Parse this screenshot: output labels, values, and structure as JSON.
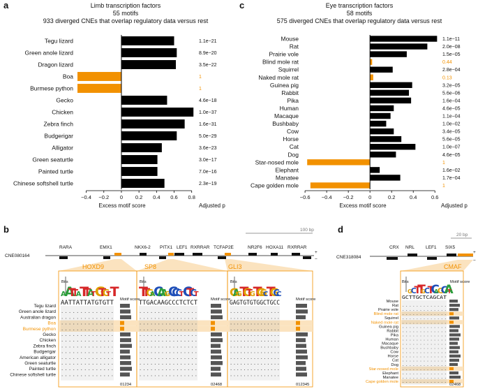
{
  "colors": {
    "accent": "#f29100",
    "bar": "#000000",
    "highlight_bg": "#fbe3bf",
    "gray_bar": "#555555"
  },
  "panel_a": {
    "letter": "a",
    "title_lines": [
      "Limb transcription factors",
      "55 motifs",
      "933 diverged CNEs that overlap regulatory data versus rest"
    ],
    "xlabel": "Excess motif score",
    "pval_label": "Adjusted p",
    "ticks": [
      "−0.4",
      "−0.2",
      "0",
      "0.2",
      "0.4",
      "0.6",
      "0.8"
    ]
  },
  "panel_c": {
    "letter": "c",
    "title_lines": [
      "Eye transcription factors",
      "58 motifs",
      "575 diverged CNEs that overlap regulatory data versus rest"
    ],
    "xlabel": "Excess motif score",
    "pval_label": "Adjusted p",
    "ticks": [
      "−0.6",
      "−0.4",
      "−0.2",
      "0",
      "0.2",
      "0.4",
      "0.6"
    ]
  },
  "chart_data": [
    {
      "type": "bar",
      "orientation": "horizontal",
      "title": "Limb transcription factors",
      "xlabel": "Excess motif score",
      "xlim": [
        -0.5,
        0.85
      ],
      "categories": [
        "Tegu lizard",
        "Green anole lizard",
        "Dragon lizard",
        "Boa",
        "Burmese python",
        "Gecko",
        "Chicken",
        "Zebra finch",
        "Budgerigar",
        "Alligator",
        "Green seaturtle",
        "Painted turtle",
        "Chinese softshell turtle"
      ],
      "values": [
        0.6,
        0.63,
        0.62,
        -0.5,
        -0.5,
        0.52,
        0.82,
        0.72,
        0.63,
        0.46,
        0.41,
        0.41,
        0.49
      ],
      "adjusted_p": [
        "1.1e−21",
        "8.9e−20",
        "3.5e−22",
        "1",
        "1",
        "4.6e−18",
        "1.0e−37",
        "1.6e−31",
        "5.0e−29",
        "3.6e−23",
        "3.0e−17",
        "7.0e−16",
        "2.3e−19"
      ],
      "highlight": [
        false,
        false,
        false,
        true,
        true,
        false,
        false,
        false,
        false,
        false,
        false,
        false,
        false
      ]
    },
    {
      "type": "bar",
      "orientation": "horizontal",
      "title": "Eye transcription factors",
      "xlabel": "Excess motif score",
      "xlim": [
        -0.62,
        0.65
      ],
      "categories": [
        "Mouse",
        "Rat",
        "Prairie vole",
        "Blind mole rat",
        "Squirrel",
        "Naked mole rat",
        "Guinea pig",
        "Rabbit",
        "Pika",
        "Human",
        "Macaque",
        "Bushbaby",
        "Cow",
        "Horse",
        "Cat",
        "Dog",
        "Star-nosed mole",
        "Elephant",
        "Manatee",
        "Cape golden mole"
      ],
      "values": [
        0.62,
        0.53,
        0.34,
        0.02,
        0.21,
        0.03,
        0.39,
        0.36,
        0.38,
        0.22,
        0.19,
        0.15,
        0.22,
        0.29,
        0.42,
        0.24,
        -0.58,
        0.09,
        0.28,
        -0.55
      ],
      "adjusted_p": [
        "1.1e−11",
        "2.0e−08",
        "1.5e−05",
        "0.44",
        "2.8e−04",
        "0.13",
        "3.2e−05",
        "5.6e−06",
        "1.6e−04",
        "4.6e−05",
        "1.1e−04",
        "1.0e−02",
        "3.4e−05",
        "5.6e−05",
        "1.0e−07",
        "4.6e−05",
        "1",
        "1.6e−02",
        "1.7e−04",
        "1"
      ],
      "highlight": [
        false,
        false,
        false,
        true,
        false,
        true,
        false,
        false,
        false,
        false,
        false,
        false,
        false,
        false,
        false,
        false,
        true,
        false,
        false,
        true
      ]
    }
  ],
  "panel_b": {
    "letter": "b",
    "cne": "CNE080164",
    "scale": "100 bp",
    "tfs": [
      "RARA",
      "EMX1",
      "NKX6-2",
      "PITX1",
      "LEF1",
      "RXRRAR",
      "TCFAP2E",
      "NR2F6",
      "HOXA11",
      "RXRRAR"
    ],
    "motifs": [
      "HOXD9",
      "SP8",
      "GLI3"
    ],
    "species": [
      "Tegu lizard",
      "Green anole lizard",
      "Australian dragon",
      "Boa",
      "Burmese python",
      "Gecko",
      "Chicken",
      "Zebra finch",
      "Budgerigar",
      "American alligator",
      "Green seaturtle",
      "Painted turtle",
      "Chinese softshell turtle"
    ],
    "species_highlight": [
      false,
      false,
      false,
      true,
      true,
      false,
      false,
      false,
      false,
      false,
      false,
      false,
      false
    ],
    "seqs": [
      "AATTATTATGTGTT",
      "TTGACAAGCCCTCTCT",
      "GAGTGTGTGGCTGCC"
    ],
    "motif_score_label": "Motif score",
    "axis_labels": [
      "01234",
      "02468",
      "012345"
    ],
    "bits": "Bits"
  },
  "panel_d": {
    "letter": "d",
    "cne": "CNE318084",
    "scale": "20 bp",
    "tfs": [
      "CRX",
      "NRL",
      "LEF1",
      "SIX5"
    ],
    "motif": "CMAF",
    "species": [
      "Mouse",
      "Rat",
      "Prairie vole",
      "Blind mole rat",
      "Squirrel",
      "Naked mole rat",
      "Guinea pig",
      "Rabbit",
      "Pika",
      "Human",
      "Macaque",
      "Bushbaby",
      "Cow",
      "Horse",
      "Cat",
      "Dog",
      "Star-nosed mole",
      "Elephant",
      "Manatee",
      "Cape golden mole"
    ],
    "species_highlight": [
      false,
      false,
      false,
      true,
      false,
      true,
      false,
      false,
      false,
      false,
      false,
      false,
      false,
      false,
      false,
      false,
      true,
      false,
      false,
      true
    ],
    "seq": "GCTTGCTCAGCAT",
    "motif_score_label": "Motif score",
    "axis_label": "02468",
    "bits": "Bits"
  }
}
